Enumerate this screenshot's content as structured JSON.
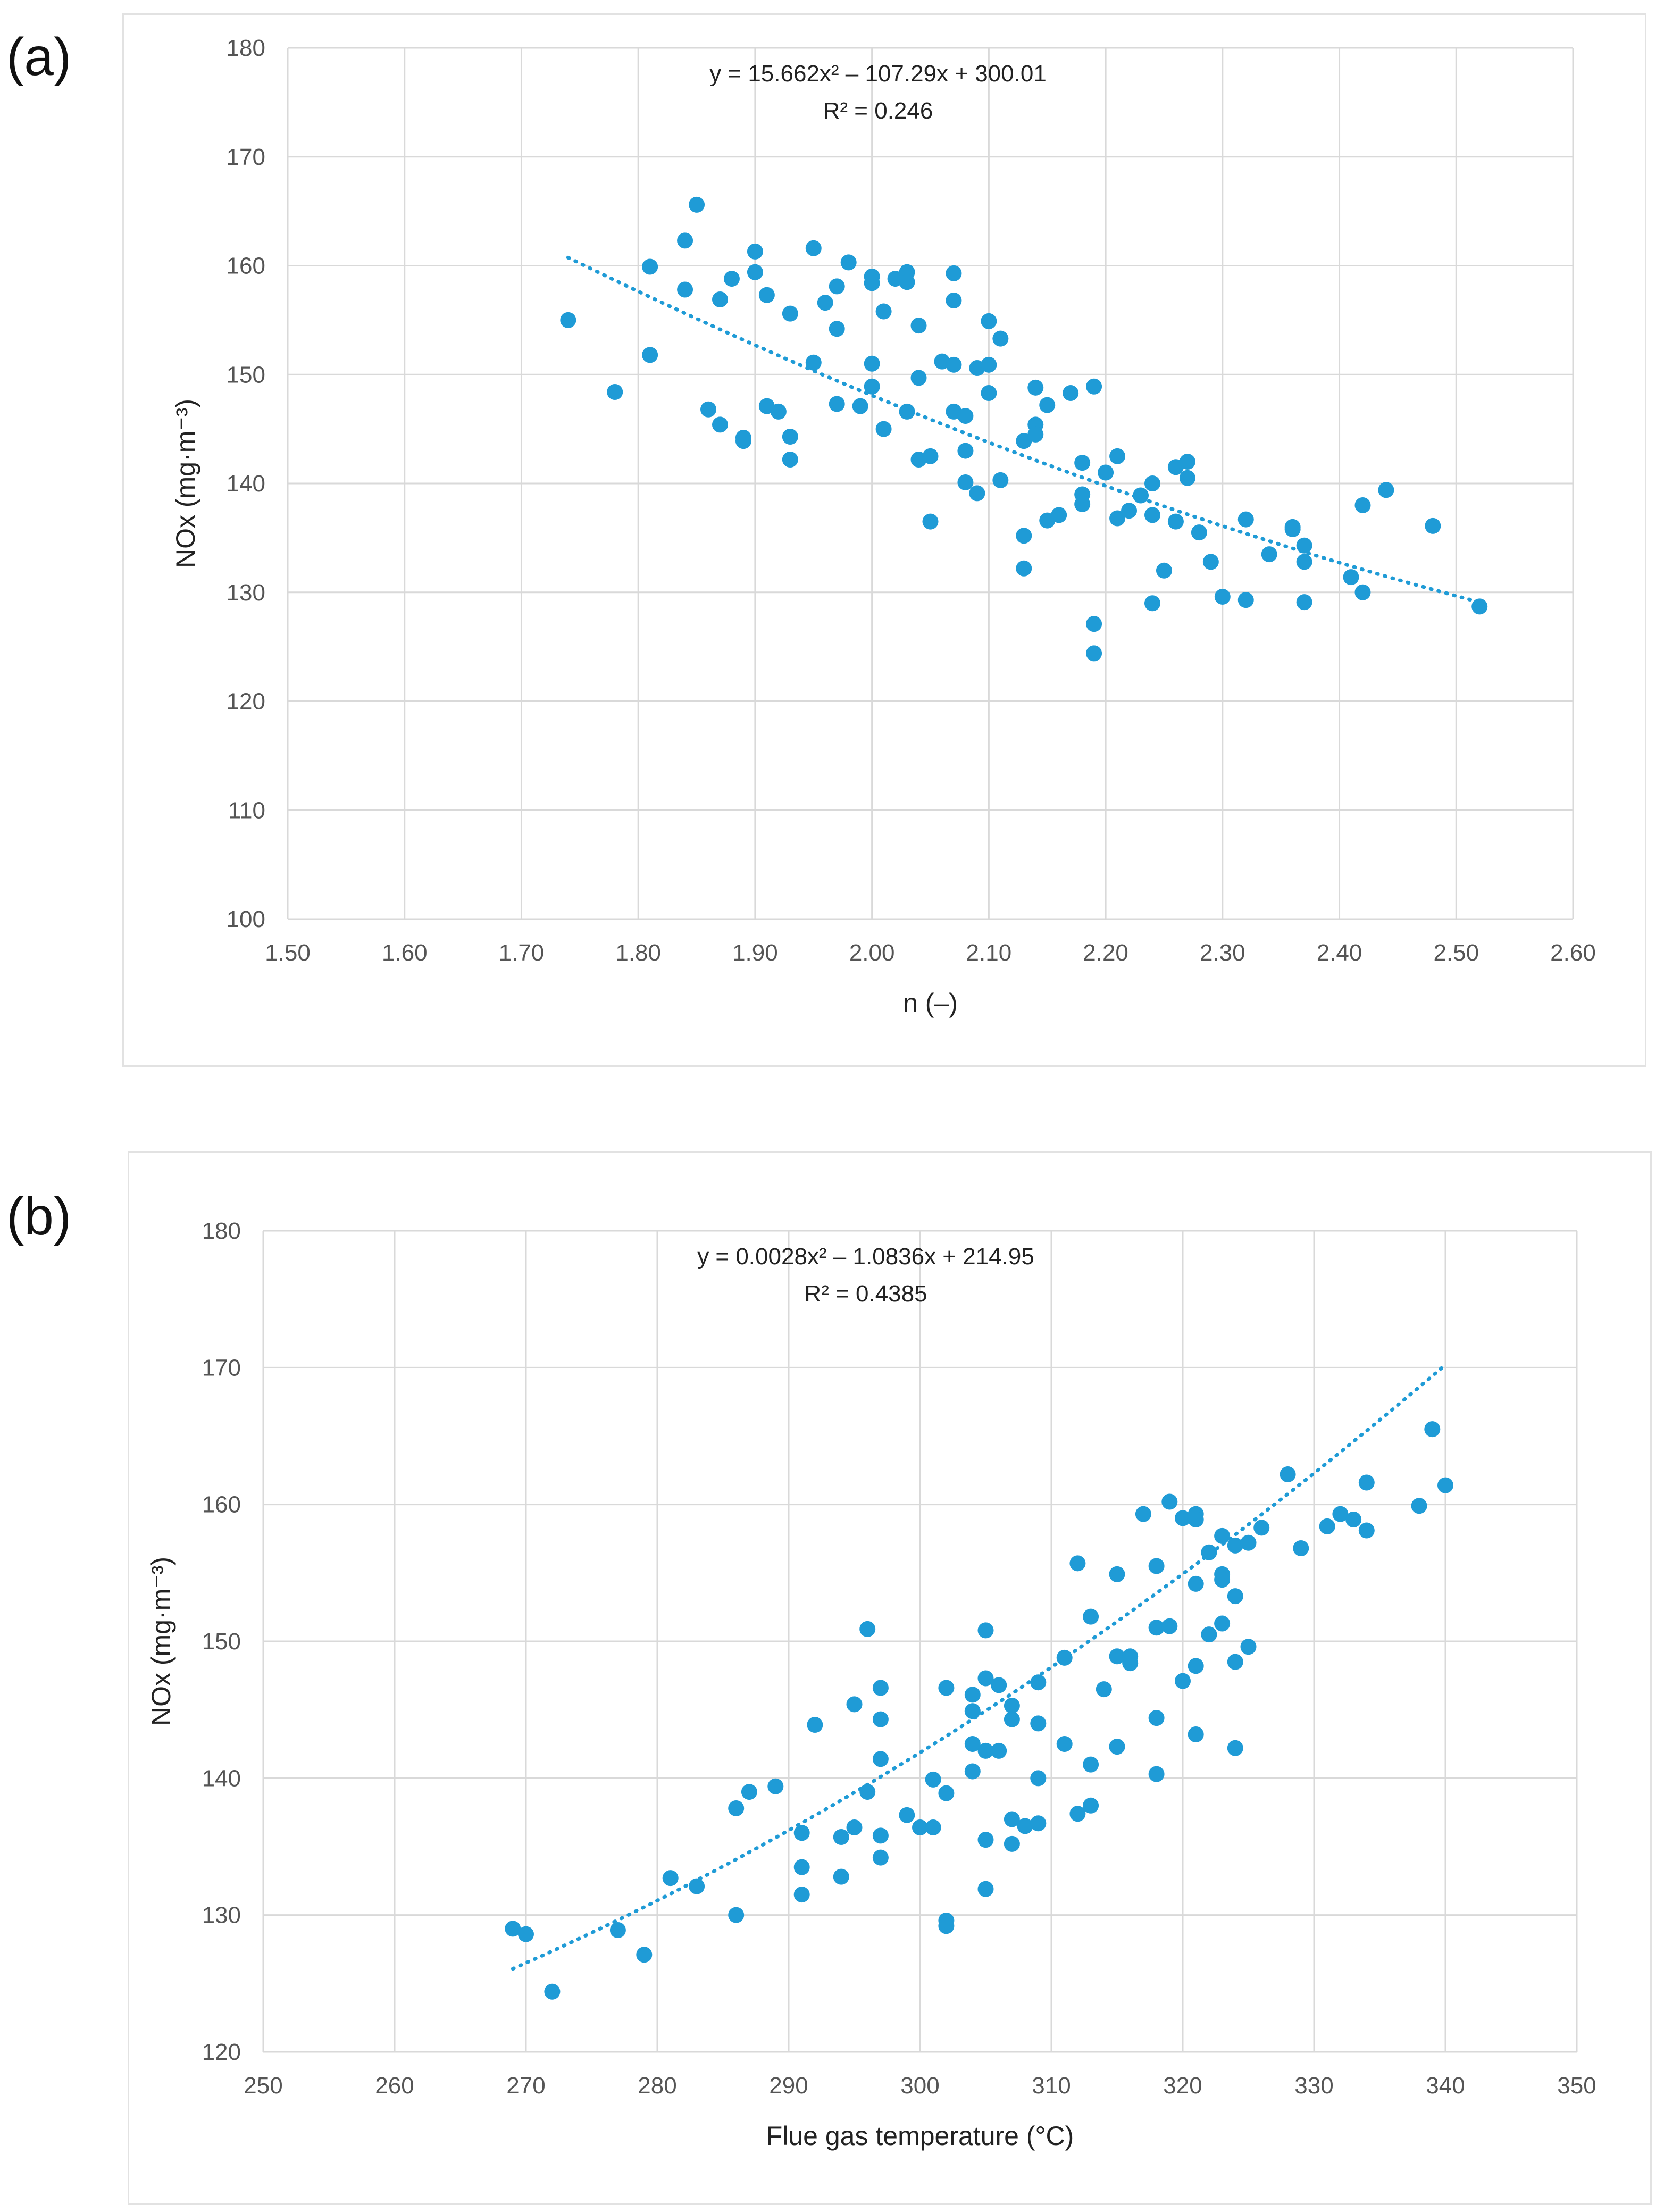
{
  "chart_data": [
    {
      "panel_label": "(a)",
      "type": "scatter",
      "xlabel": "n (–)",
      "ylabel": "NOx (mg·m⁻³)",
      "xlim": [
        1.5,
        2.6
      ],
      "ylim": [
        100,
        180
      ],
      "x_ticks": [
        "1.50",
        "1.60",
        "1.70",
        "1.80",
        "1.90",
        "2.00",
        "2.10",
        "2.20",
        "2.30",
        "2.40",
        "2.50",
        "2.60"
      ],
      "y_ticks": [
        "100",
        "110",
        "120",
        "130",
        "140",
        "150",
        "160",
        "170",
        "180"
      ],
      "grid": true,
      "marker_color": "#1f9bd6",
      "trendline": {
        "type": "polynomial-2",
        "a": 15.662,
        "b": -107.29,
        "c": 300.01,
        "x_range": [
          1.74,
          2.52
        ]
      },
      "equation": "y = 15.662x² – 107.29x + 300.01",
      "r2": "R² = 0.246",
      "points": [
        [
          1.74,
          155.0
        ],
        [
          1.78,
          148.4
        ],
        [
          1.81,
          159.9
        ],
        [
          1.81,
          151.8
        ],
        [
          1.84,
          157.8
        ],
        [
          1.84,
          162.3
        ],
        [
          1.85,
          165.6
        ],
        [
          1.86,
          146.8
        ],
        [
          1.87,
          145.4
        ],
        [
          1.87,
          156.9
        ],
        [
          1.88,
          158.8
        ],
        [
          1.89,
          143.9
        ],
        [
          1.89,
          144.2
        ],
        [
          1.9,
          159.4
        ],
        [
          1.9,
          161.3
        ],
        [
          1.91,
          147.1
        ],
        [
          1.91,
          157.3
        ],
        [
          1.92,
          146.6
        ],
        [
          1.93,
          155.6
        ],
        [
          1.93,
          144.3
        ],
        [
          1.93,
          142.2
        ],
        [
          1.95,
          151.1
        ],
        [
          1.95,
          161.6
        ],
        [
          1.96,
          156.6
        ],
        [
          1.97,
          158.1
        ],
        [
          1.97,
          147.3
        ],
        [
          1.97,
          154.2
        ],
        [
          1.98,
          160.3
        ],
        [
          1.99,
          147.1
        ],
        [
          2.0,
          159.0
        ],
        [
          2.0,
          151.0
        ],
        [
          2.0,
          148.9
        ],
        [
          2.0,
          158.4
        ],
        [
          2.01,
          145.0
        ],
        [
          2.01,
          155.8
        ],
        [
          2.02,
          158.8
        ],
        [
          2.03,
          159.4
        ],
        [
          2.03,
          158.5
        ],
        [
          2.03,
          146.6
        ],
        [
          2.04,
          154.5
        ],
        [
          2.04,
          149.7
        ],
        [
          2.04,
          142.2
        ],
        [
          2.05,
          142.5
        ],
        [
          2.05,
          136.5
        ],
        [
          2.06,
          151.2
        ],
        [
          2.07,
          159.3
        ],
        [
          2.07,
          146.6
        ],
        [
          2.07,
          150.9
        ],
        [
          2.07,
          156.8
        ],
        [
          2.08,
          143.0
        ],
        [
          2.08,
          140.1
        ],
        [
          2.08,
          146.2
        ],
        [
          2.09,
          139.1
        ],
        [
          2.09,
          150.6
        ],
        [
          2.1,
          154.9
        ],
        [
          2.1,
          150.9
        ],
        [
          2.1,
          148.3
        ],
        [
          2.11,
          153.3
        ],
        [
          2.11,
          140.3
        ],
        [
          2.13,
          132.2
        ],
        [
          2.13,
          135.2
        ],
        [
          2.13,
          143.9
        ],
        [
          2.14,
          145.4
        ],
        [
          2.14,
          148.8
        ],
        [
          2.14,
          144.5
        ],
        [
          2.15,
          147.2
        ],
        [
          2.15,
          136.6
        ],
        [
          2.16,
          137.1
        ],
        [
          2.17,
          148.3
        ],
        [
          2.18,
          138.1
        ],
        [
          2.18,
          139.0
        ],
        [
          2.18,
          141.9
        ],
        [
          2.19,
          127.1
        ],
        [
          2.19,
          124.4
        ],
        [
          2.19,
          148.9
        ],
        [
          2.2,
          141.0
        ],
        [
          2.21,
          136.8
        ],
        [
          2.21,
          142.5
        ],
        [
          2.22,
          137.5
        ],
        [
          2.23,
          138.9
        ],
        [
          2.24,
          129.0
        ],
        [
          2.24,
          140.0
        ],
        [
          2.24,
          137.1
        ],
        [
          2.25,
          132.0
        ],
        [
          2.26,
          141.5
        ],
        [
          2.26,
          136.5
        ],
        [
          2.27,
          142.0
        ],
        [
          2.27,
          140.5
        ],
        [
          2.28,
          135.5
        ],
        [
          2.29,
          132.8
        ],
        [
          2.3,
          129.6
        ],
        [
          2.32,
          136.7
        ],
        [
          2.32,
          129.3
        ],
        [
          2.34,
          133.5
        ],
        [
          2.36,
          136.0
        ],
        [
          2.36,
          135.8
        ],
        [
          2.37,
          134.3
        ],
        [
          2.37,
          129.1
        ],
        [
          2.37,
          132.8
        ],
        [
          2.41,
          131.4
        ],
        [
          2.42,
          138.0
        ],
        [
          2.42,
          130.0
        ],
        [
          2.44,
          139.4
        ],
        [
          2.48,
          136.1
        ],
        [
          2.52,
          128.7
        ]
      ]
    },
    {
      "panel_label": "(b)",
      "type": "scatter",
      "xlabel": "Flue gas temperature (°C)",
      "ylabel": "NOx (mg·m⁻³)",
      "xlim": [
        250,
        350
      ],
      "ylim": [
        120,
        180
      ],
      "x_ticks": [
        "250",
        "260",
        "270",
        "280",
        "290",
        "300",
        "310",
        "320",
        "330",
        "340",
        "350"
      ],
      "y_ticks": [
        "120",
        "130",
        "140",
        "150",
        "160",
        "170",
        "180"
      ],
      "grid": true,
      "marker_color": "#1f9bd6",
      "trendline": {
        "type": "polynomial-2",
        "a": 0.0028,
        "b": -1.0836,
        "c": 214.95,
        "x_range": [
          269,
          340
        ]
      },
      "equation": "y = 0.0028x² – 1.0836x + 214.95",
      "r2": "R² = 0.4385",
      "points": [
        [
          269,
          129.0
        ],
        [
          270,
          128.6
        ],
        [
          272,
          124.4
        ],
        [
          277,
          128.9
        ],
        [
          279,
          127.1
        ],
        [
          281,
          132.7
        ],
        [
          283,
          132.1
        ],
        [
          286,
          130.0
        ],
        [
          286,
          137.8
        ],
        [
          287,
          139.0
        ],
        [
          289,
          139.4
        ],
        [
          291,
          136.0
        ],
        [
          291,
          133.5
        ],
        [
          291,
          131.5
        ],
        [
          292,
          143.9
        ],
        [
          294,
          135.7
        ],
        [
          294,
          132.8
        ],
        [
          295,
          136.4
        ],
        [
          295,
          145.4
        ],
        [
          296,
          150.9
        ],
        [
          296,
          139.0
        ],
        [
          297,
          146.6
        ],
        [
          297,
          144.3
        ],
        [
          297,
          141.4
        ],
        [
          297,
          135.8
        ],
        [
          297,
          134.2
        ],
        [
          299,
          137.3
        ],
        [
          300,
          136.4
        ],
        [
          301,
          136.4
        ],
        [
          301,
          139.9
        ],
        [
          302,
          146.6
        ],
        [
          302,
          138.9
        ],
        [
          302,
          129.6
        ],
        [
          302,
          129.2
        ],
        [
          304,
          146.1
        ],
        [
          304,
          144.9
        ],
        [
          304,
          142.5
        ],
        [
          304,
          140.5
        ],
        [
          305,
          150.8
        ],
        [
          305,
          147.3
        ],
        [
          305,
          142.0
        ],
        [
          305,
          135.5
        ],
        [
          305,
          131.9
        ],
        [
          306,
          146.8
        ],
        [
          306,
          142.0
        ],
        [
          307,
          145.3
        ],
        [
          307,
          144.3
        ],
        [
          307,
          137.0
        ],
        [
          307,
          135.2
        ],
        [
          308,
          136.5
        ],
        [
          309,
          147.0
        ],
        [
          309,
          144.0
        ],
        [
          309,
          140.0
        ],
        [
          309,
          136.7
        ],
        [
          311,
          148.8
        ],
        [
          311,
          142.5
        ],
        [
          312,
          155.7
        ],
        [
          312,
          137.4
        ],
        [
          313,
          151.8
        ],
        [
          313,
          141.0
        ],
        [
          313,
          138.0
        ],
        [
          314,
          146.5
        ],
        [
          315,
          154.9
        ],
        [
          315,
          148.9
        ],
        [
          315,
          142.3
        ],
        [
          316,
          148.4
        ],
        [
          316,
          148.9
        ],
        [
          317,
          159.3
        ],
        [
          318,
          155.5
        ],
        [
          318,
          151.0
        ],
        [
          318,
          144.4
        ],
        [
          318,
          140.3
        ],
        [
          319,
          160.2
        ],
        [
          319,
          151.1
        ],
        [
          320,
          159.0
        ],
        [
          320,
          147.1
        ],
        [
          321,
          159.3
        ],
        [
          321,
          158.9
        ],
        [
          321,
          154.2
        ],
        [
          321,
          148.2
        ],
        [
          321,
          143.2
        ],
        [
          322,
          156.5
        ],
        [
          322,
          150.5
        ],
        [
          323,
          157.7
        ],
        [
          323,
          154.9
        ],
        [
          323,
          154.5
        ],
        [
          323,
          151.3
        ],
        [
          324,
          157.0
        ],
        [
          324,
          153.3
        ],
        [
          324,
          148.5
        ],
        [
          324,
          142.2
        ],
        [
          325,
          157.2
        ],
        [
          325,
          149.6
        ],
        [
          326,
          158.3
        ],
        [
          328,
          162.2
        ],
        [
          329,
          156.8
        ],
        [
          331,
          158.4
        ],
        [
          332,
          159.3
        ],
        [
          333,
          158.9
        ],
        [
          334,
          161.6
        ],
        [
          334,
          158.1
        ],
        [
          338,
          159.9
        ],
        [
          339,
          165.5
        ],
        [
          340,
          161.4
        ]
      ]
    }
  ]
}
